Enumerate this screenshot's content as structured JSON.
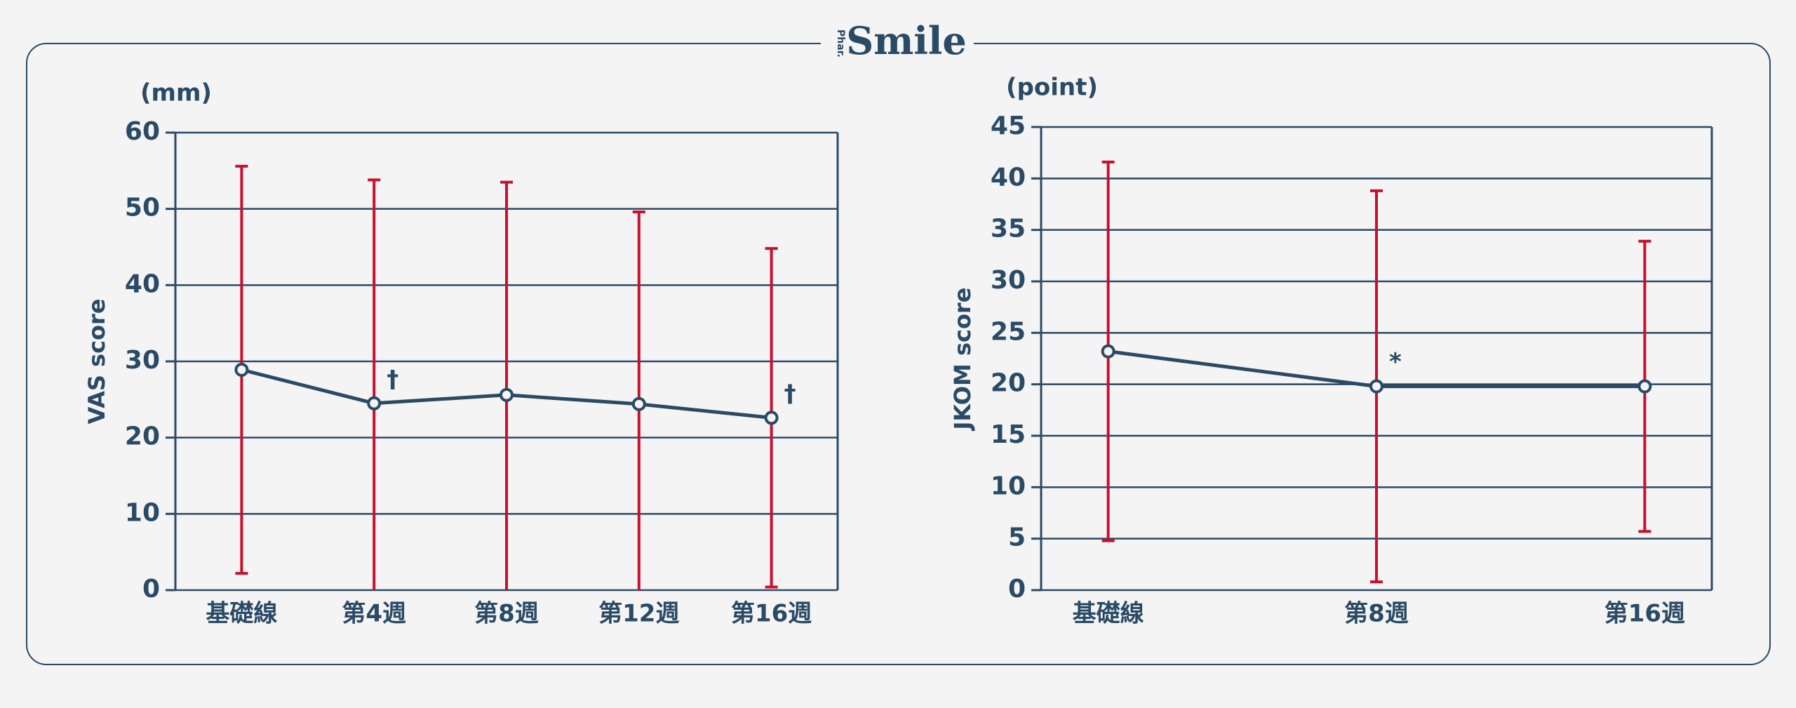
{
  "brand": {
    "prefix": "Phar.",
    "name": "Smile"
  },
  "chart_data": [
    {
      "type": "line",
      "unit_label": "(mm)",
      "y_label": "VAS score",
      "categories": [
        "基礎線",
        "第4週",
        "第8週",
        "第12週",
        "第16週"
      ],
      "values": [
        28.9,
        24.5,
        25.6,
        24.4,
        22.6
      ],
      "errors": [
        26.7,
        29.3,
        27.9,
        25.2,
        22.2
      ],
      "annotations": [
        null,
        "†",
        null,
        null,
        "†"
      ],
      "color": "#2a4a65",
      "error_color": "#c8102e",
      "ylim": [
        0,
        60
      ],
      "yticks": [
        0,
        10,
        20,
        30,
        40,
        50,
        60
      ],
      "grid": true
    },
    {
      "type": "line",
      "unit_label": "(point)",
      "y_label": "JKOM score",
      "categories": [
        "基礎線",
        "第8週",
        "第16週"
      ],
      "values": [
        23.2,
        19.8,
        19.8
      ],
      "errors": [
        18.4,
        19.0,
        14.1
      ],
      "annotations": [
        null,
        "*",
        null
      ],
      "color": "#2a4a65",
      "error_color": "#c8102e",
      "ylim": [
        0,
        45
      ],
      "yticks": [
        0,
        5,
        10,
        15,
        20,
        25,
        30,
        35,
        40,
        45
      ],
      "grid": true
    }
  ]
}
